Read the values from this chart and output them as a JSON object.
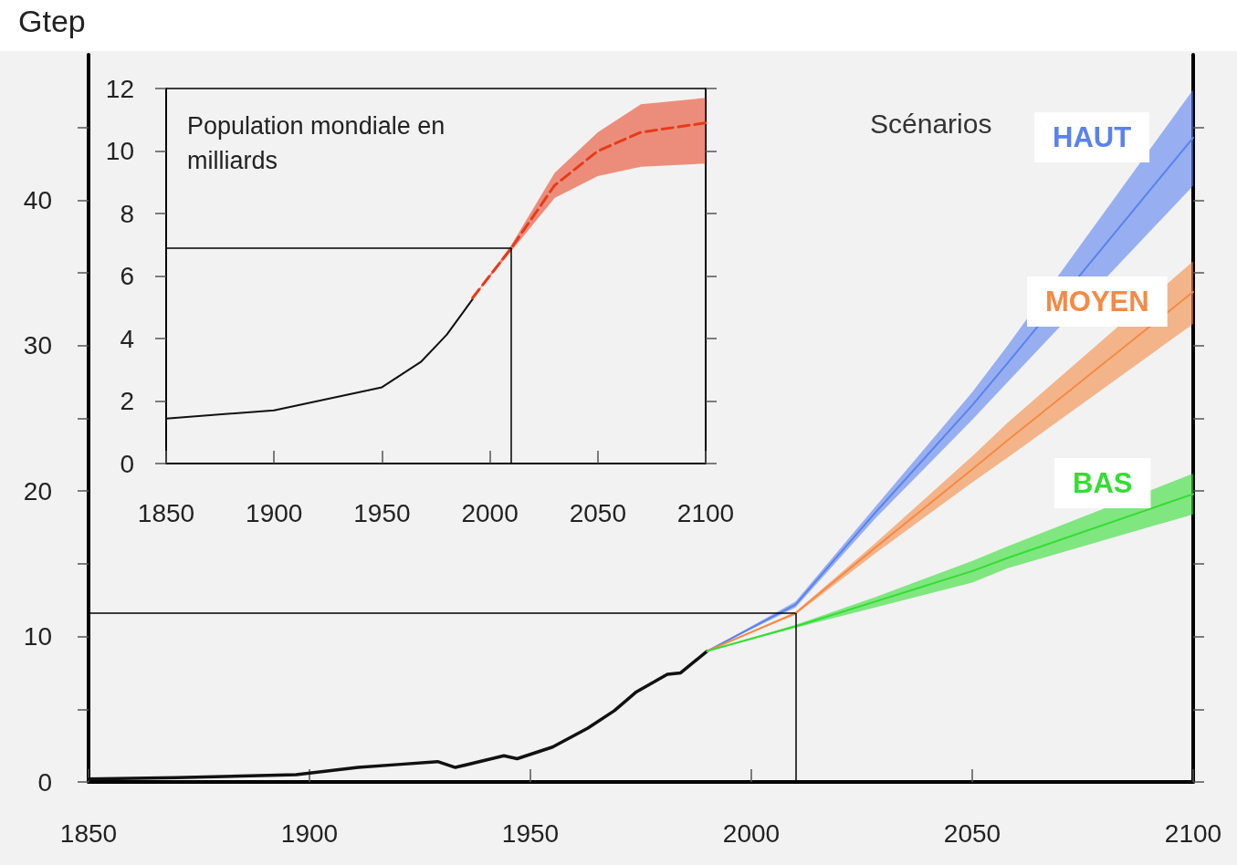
{
  "chart_data": [
    {
      "type": "line",
      "ylabel": "Gtep",
      "legend_title": "Scénarios",
      "xlim": [
        1850,
        2100
      ],
      "xticks": [
        1850,
        1900,
        1950,
        2000,
        2050,
        2100
      ],
      "ylim": [
        0,
        50
      ],
      "yticks": [
        0,
        {
          "value": 5,
          "label": null
        },
        10,
        {
          "value": 15,
          "label": null
        },
        20,
        {
          "value": 25,
          "label": null
        },
        30,
        {
          "value": 35,
          "label": null
        },
        40,
        {
          "value": 45,
          "label": null
        }
      ],
      "marker": "none",
      "grid": false,
      "ref_lines": [
        {
          "axis": "x",
          "value": 2010,
          "color": "#000000"
        },
        {
          "axis": "y",
          "value": 11.6,
          "color": "#000000"
        }
      ],
      "series": [
        {
          "color": "#111111",
          "x": [
            1850,
            1870,
            1897,
            1911,
            1920,
            1929,
            1933,
            1944,
            1947,
            1955,
            1963,
            1969,
            1974,
            1981,
            1984,
            1990
          ],
          "values": [
            0.2,
            0.3,
            0.5,
            1.0,
            1.2,
            1.4,
            1.0,
            1.8,
            1.6,
            2.4,
            3.7,
            4.9,
            6.2,
            7.4,
            7.5,
            9.0
          ]
        },
        {
          "name": "HAUT",
          "color": "#5a82ee",
          "x": [
            1990,
            2010,
            2028,
            2050,
            2058,
            2100
          ],
          "values": [
            9.0,
            12.2,
            18.5,
            25.9,
            28.8,
            44.3
          ],
          "lower": [
            9.0,
            12.0,
            18.1,
            24.9,
            27.5,
            41.0
          ],
          "upper": [
            9.0,
            12.4,
            18.9,
            26.8,
            30.0,
            47.6
          ]
        },
        {
          "name": "MOYEN",
          "color": "#f58a45",
          "x": [
            1990,
            2010,
            2028,
            2050,
            2058,
            2100
          ],
          "values": [
            9.0,
            11.6,
            16.1,
            21.5,
            23.5,
            33.7
          ],
          "lower": [
            9.0,
            11.5,
            15.7,
            20.6,
            22.3,
            31.5
          ],
          "upper": [
            9.0,
            11.7,
            16.4,
            22.4,
            24.7,
            35.8
          ]
        },
        {
          "name": "BAS",
          "color": "#33dd33",
          "x": [
            1990,
            2010,
            2028,
            2050,
            2058,
            2100
          ],
          "values": [
            9.0,
            10.7,
            12.4,
            14.5,
            15.4,
            19.8
          ],
          "lower": [
            9.0,
            10.6,
            12.0,
            13.7,
            14.7,
            18.4
          ],
          "upper": [
            9.0,
            10.8,
            12.7,
            15.2,
            16.2,
            21.2
          ]
        }
      ]
    },
    {
      "type": "line",
      "title": "Population mondiale en milliards",
      "xlim": [
        1850,
        2100
      ],
      "xticks": [
        1850,
        1900,
        1950,
        2000,
        2050,
        2100
      ],
      "ylim": [
        0,
        12
      ],
      "yticks": [
        0,
        2,
        4,
        6,
        8,
        10,
        12
      ],
      "marker": "none",
      "grid": false,
      "ref_lines": [
        {
          "axis": "x",
          "value": 2010,
          "color": "#000000"
        },
        {
          "axis": "y",
          "value": 6.9,
          "color": "#000000"
        }
      ],
      "series": [
        {
          "color": "#111111",
          "x": [
            1850,
            1900,
            1950,
            1968,
            1980,
            1992
          ],
          "values": [
            1.44,
            1.7,
            2.44,
            3.25,
            4.12,
            5.26
          ]
        },
        {
          "color": "#e83a1a",
          "line_style": "dashed",
          "x": [
            1992,
            2010,
            2030,
            2050,
            2070,
            2100
          ],
          "values": [
            5.3,
            6.9,
            8.9,
            10.0,
            10.6,
            10.9
          ],
          "lower": [
            5.3,
            6.8,
            8.5,
            9.2,
            9.5,
            9.6
          ],
          "upper": [
            5.3,
            7.0,
            9.3,
            10.6,
            11.5,
            11.7
          ]
        }
      ]
    }
  ]
}
